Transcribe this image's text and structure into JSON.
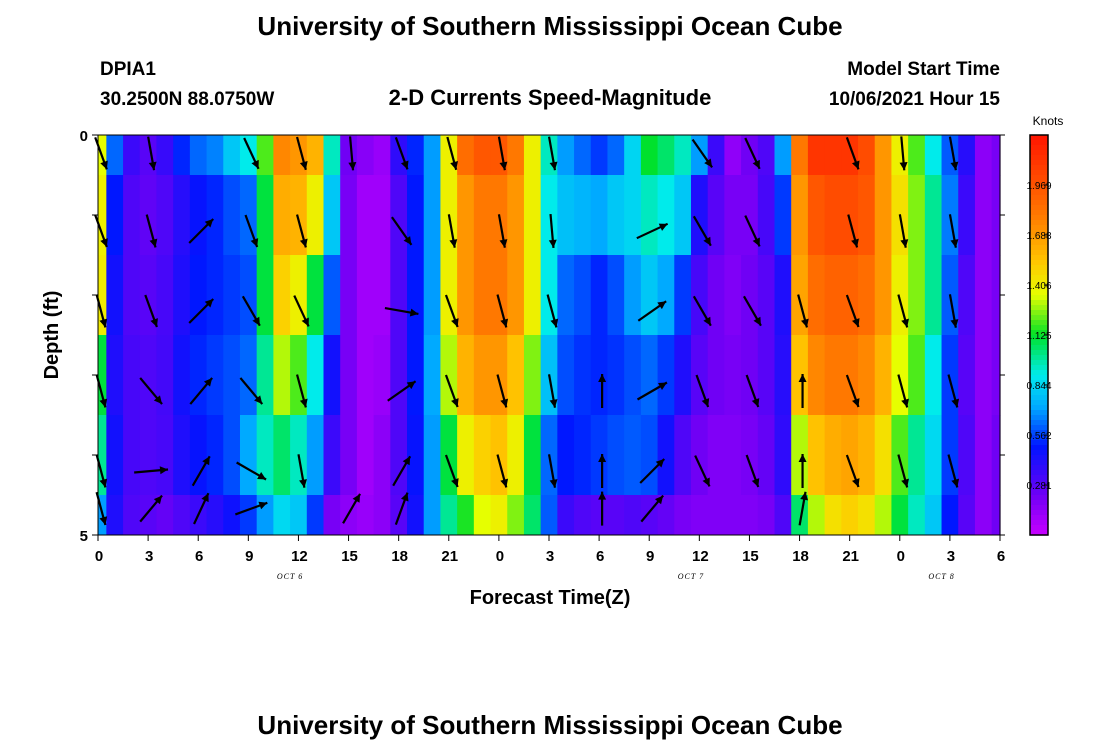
{
  "header": {
    "title": "University of Southern Mississippi Ocean Cube",
    "station": "DPIA1",
    "coords": "30.2500N  88.0750W",
    "subtitle": "2-D Currents Speed-Magnitude",
    "model_label": "Model Start Time",
    "model_time": "10/06/2021 Hour 15"
  },
  "footer": {
    "title": "University of Southern Mississippi Ocean Cube"
  },
  "chart_data": {
    "type": "heatmap",
    "title": "2-D Currents Speed-Magnitude",
    "xlabel": "Forecast Time(Z)",
    "ylabel": "Depth (ft)",
    "x_ticks": [
      "0",
      "3",
      "6",
      "9",
      "12",
      "15",
      "18",
      "21",
      "0",
      "3",
      "6",
      "9",
      "12",
      "15",
      "18",
      "21",
      "0",
      "3",
      "6"
    ],
    "x_range_hours": [
      0,
      54
    ],
    "y_ticks": [
      "0",
      "5"
    ],
    "y_range_ft": [
      0,
      5
    ],
    "date_labels": [
      {
        "hour": 11.5,
        "label": "OCT 6"
      },
      {
        "hour": 35.5,
        "label": "OCT 7"
      },
      {
        "hour": 50.5,
        "label": "OCT 8"
      }
    ],
    "colorbar": {
      "unit": "Knots",
      "min": 0.0,
      "max": 2.25,
      "tick_values": [
        0.281,
        0.562,
        0.844,
        1.125,
        1.406,
        1.688,
        1.969
      ],
      "tick_labels": [
        "0.281",
        "0.562",
        "0.844",
        "1.125",
        "1.406",
        "1.688",
        "1.969"
      ]
    },
    "layers_top_ft": [
      0,
      0.5,
      1.5,
      2.5,
      3.5,
      4.5
    ],
    "layers_bottom_ft": [
      0.5,
      1.5,
      2.5,
      3.5,
      4.5,
      5.0
    ],
    "columns_hours": [
      0,
      1,
      2,
      3,
      4,
      5,
      6,
      7,
      8,
      9,
      10,
      11,
      12,
      13,
      14,
      15,
      16,
      17,
      18,
      19,
      20,
      21,
      22,
      23,
      24,
      25,
      26,
      27,
      28,
      29,
      30,
      31,
      32,
      33,
      34,
      35,
      36,
      37,
      38,
      39,
      40,
      41,
      42,
      43,
      44,
      45,
      46,
      47,
      48,
      49,
      50,
      51,
      52,
      53,
      54
    ],
    "speed_knots": [
      [
        1.35,
        0.62,
        0.35,
        0.28,
        0.36,
        0.52,
        0.62,
        0.66,
        0.8,
        0.9,
        1.2,
        1.75,
        1.7,
        1.6,
        0.95,
        0.22,
        0.16,
        0.12,
        0.38,
        0.52,
        0.7,
        1.4,
        1.85,
        1.95,
        1.95,
        1.8,
        1.4,
        0.95,
        0.7,
        0.62,
        0.55,
        0.62,
        0.84,
        1.12,
        1.05,
        0.95,
        0.7,
        0.35,
        0.14,
        0.22,
        0.3,
        0.7,
        1.8,
        2.1,
        2.1,
        2.1,
        2.0,
        1.7,
        1.4,
        1.2,
        0.9,
        0.6,
        0.4,
        0.15,
        0.2
      ],
      [
        1.4,
        0.5,
        0.3,
        0.26,
        0.3,
        0.4,
        0.48,
        0.52,
        0.58,
        0.62,
        1.1,
        1.62,
        1.6,
        1.4,
        0.8,
        0.2,
        0.1,
        0.1,
        0.3,
        0.5,
        0.7,
        1.4,
        1.7,
        1.8,
        1.8,
        1.7,
        1.4,
        0.9,
        0.78,
        0.75,
        0.72,
        0.8,
        0.84,
        0.95,
        0.9,
        0.8,
        0.42,
        0.28,
        0.2,
        0.2,
        0.32,
        0.55,
        1.7,
        1.95,
        2.0,
        2.0,
        1.95,
        1.7,
        1.45,
        1.25,
        1.0,
        0.65,
        0.35,
        0.15,
        0.2
      ],
      [
        1.42,
        0.45,
        0.3,
        0.28,
        0.32,
        0.42,
        0.5,
        0.52,
        0.55,
        0.58,
        1.1,
        1.5,
        1.4,
        1.1,
        0.6,
        0.2,
        0.1,
        0.1,
        0.3,
        0.5,
        0.7,
        1.4,
        1.7,
        1.8,
        1.8,
        1.7,
        1.4,
        0.9,
        0.62,
        0.58,
        0.52,
        0.58,
        0.7,
        0.8,
        0.72,
        0.55,
        0.32,
        0.22,
        0.18,
        0.22,
        0.28,
        0.42,
        1.65,
        1.85,
        1.9,
        1.9,
        1.85,
        1.7,
        1.4,
        1.25,
        1.0,
        0.6,
        0.3,
        0.15,
        0.2
      ],
      [
        1.1,
        0.42,
        0.32,
        0.3,
        0.33,
        0.45,
        0.52,
        0.55,
        0.58,
        0.62,
        1.0,
        1.3,
        1.2,
        0.9,
        0.45,
        0.2,
        0.1,
        0.12,
        0.3,
        0.5,
        0.72,
        1.3,
        1.6,
        1.7,
        1.7,
        1.55,
        1.25,
        0.78,
        0.58,
        0.54,
        0.52,
        0.54,
        0.58,
        0.62,
        0.55,
        0.42,
        0.28,
        0.22,
        0.2,
        0.22,
        0.28,
        0.4,
        1.55,
        1.75,
        1.8,
        1.8,
        1.75,
        1.6,
        1.35,
        1.2,
        0.9,
        0.55,
        0.28,
        0.15,
        0.2
      ],
      [
        1.0,
        0.45,
        0.32,
        0.3,
        0.32,
        0.42,
        0.48,
        0.52,
        0.58,
        0.72,
        0.95,
        1.05,
        0.95,
        0.7,
        0.35,
        0.2,
        0.1,
        0.15,
        0.3,
        0.48,
        0.7,
        1.1,
        1.4,
        1.5,
        1.55,
        1.4,
        1.1,
        0.62,
        0.5,
        0.52,
        0.55,
        0.58,
        0.6,
        0.58,
        0.45,
        0.3,
        0.22,
        0.18,
        0.18,
        0.2,
        0.25,
        0.38,
        1.3,
        1.55,
        1.62,
        1.65,
        1.6,
        1.45,
        1.2,
        1.0,
        0.85,
        0.55,
        0.3,
        0.15,
        0.22
      ],
      [
        0.7,
        0.42,
        0.3,
        0.28,
        0.25,
        0.3,
        0.35,
        0.4,
        0.46,
        0.55,
        0.7,
        0.85,
        0.8,
        0.55,
        0.2,
        0.15,
        0.12,
        0.15,
        0.28,
        0.45,
        0.7,
        1.0,
        1.15,
        1.35,
        1.4,
        1.25,
        1.05,
        0.6,
        0.35,
        0.3,
        0.28,
        0.28,
        0.3,
        0.28,
        0.25,
        0.2,
        0.18,
        0.18,
        0.18,
        0.18,
        0.2,
        0.3,
        1.05,
        1.3,
        1.45,
        1.5,
        1.45,
        1.3,
        1.1,
        0.95,
        0.8,
        0.5,
        0.28,
        0.15,
        0.22
      ]
    ],
    "arrows_note": "direction in degrees clockwise from up (north) for each row at each listed hour",
    "arrow_hours": [
      0,
      3,
      6,
      9,
      12,
      15,
      18,
      21,
      24,
      27,
      30,
      33,
      36,
      39,
      42,
      45,
      48,
      51
    ],
    "arrow_dir_deg": [
      [
        160,
        170,
        -1,
        155,
        165,
        175,
        160,
        165,
        170,
        170,
        -1,
        -1,
        145,
        155,
        -1,
        160,
        175,
        170
      ],
      [
        160,
        165,
        45,
        160,
        165,
        -1,
        145,
        170,
        170,
        175,
        -1,
        65,
        150,
        155,
        -1,
        165,
        170,
        170
      ],
      [
        165,
        160,
        45,
        150,
        155,
        -1,
        100,
        160,
        165,
        165,
        -1,
        55,
        150,
        150,
        165,
        160,
        165,
        170
      ],
      [
        165,
        140,
        40,
        140,
        165,
        -1,
        55,
        160,
        165,
        170,
        0,
        60,
        160,
        160,
        0,
        160,
        165,
        165
      ],
      [
        165,
        85,
        30,
        120,
        170,
        -1,
        30,
        160,
        165,
        170,
        0,
        45,
        155,
        160,
        0,
        160,
        165,
        165
      ],
      [
        165,
        40,
        25,
        70,
        -1,
        30,
        20,
        -1,
        -1,
        -1,
        0,
        40,
        -1,
        -1,
        10,
        -1,
        -1,
        -1
      ]
    ]
  }
}
